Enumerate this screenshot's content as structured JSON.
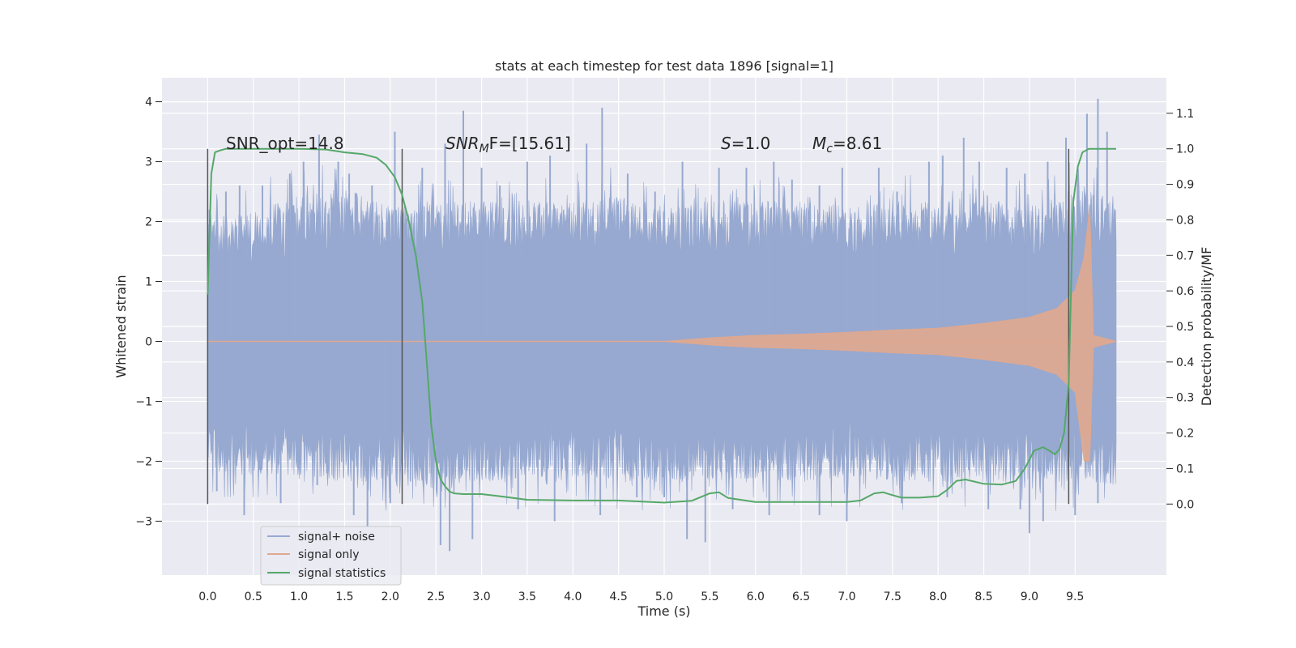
{
  "chart_data": {
    "type": "line",
    "title": "stats at each timestep for test data 1896 [signal=1]",
    "xlabel": "Time (s)",
    "ylabel": "Whitened strain",
    "ylabel_right": "Detection probability/MF",
    "xlim": [
      -0.5,
      10.5
    ],
    "ylim": [
      -3.9,
      4.4
    ],
    "ylim_right": [
      -0.2,
      1.2
    ],
    "x_ticks": [
      "0.0",
      "0.5",
      "1.0",
      "1.5",
      "2.0",
      "2.5",
      "3.0",
      "3.5",
      "4.0",
      "4.5",
      "5.0",
      "5.5",
      "6.0",
      "6.5",
      "7.0",
      "7.5",
      "8.0",
      "8.5",
      "9.0",
      "9.5"
    ],
    "x_tick_values": [
      0.0,
      0.5,
      1.0,
      1.5,
      2.0,
      2.5,
      3.0,
      3.5,
      4.0,
      4.5,
      5.0,
      5.5,
      6.0,
      6.5,
      7.0,
      7.5,
      8.0,
      8.5,
      9.0,
      9.5
    ],
    "y_ticks": [
      "−3",
      "−2",
      "−1",
      "0",
      "1",
      "2",
      "3",
      "4"
    ],
    "y_tick_values": [
      -3,
      -2,
      -1,
      0,
      1,
      2,
      3,
      4
    ],
    "y_right_ticks": [
      "0.0",
      "0.1",
      "0.2",
      "0.3",
      "0.4",
      "0.5",
      "0.6",
      "0.7",
      "0.8",
      "0.9",
      "1.0",
      "1.1"
    ],
    "y_right_tick_values": [
      0.0,
      0.1,
      0.2,
      0.3,
      0.4,
      0.5,
      0.6,
      0.7,
      0.8,
      0.9,
      1.0,
      1.1
    ],
    "grid": true,
    "legend_position": "bottom-left",
    "annotations": {
      "snr_opt": "SNR_opt=14.8",
      "snr_mf": "SNR",
      "snr_mf_sub": "M",
      "snr_mf_rest": "F=[15.61]",
      "s_label": "S",
      "s_value": "=1.0",
      "mc_label": "M",
      "mc_sub": "c",
      "mc_value": "=8.61"
    },
    "vertical_markers": [
      0.0,
      2.13,
      9.43
    ],
    "series": [
      {
        "name": "signal+ noise",
        "color": "#97a9d0",
        "x_range": [
          0.0,
          9.95
        ],
        "upper_envelope": [
          [
            0.0,
            2.2
          ],
          [
            0.5,
            2.2
          ],
          [
            1.0,
            2.5
          ],
          [
            1.5,
            2.6
          ],
          [
            2.0,
            2.3
          ],
          [
            2.5,
            2.4
          ],
          [
            3.0,
            2.4
          ],
          [
            3.5,
            2.4
          ],
          [
            4.0,
            2.4
          ],
          [
            4.5,
            2.5
          ],
          [
            5.0,
            2.3
          ],
          [
            5.5,
            2.4
          ],
          [
            6.0,
            2.4
          ],
          [
            6.5,
            2.4
          ],
          [
            7.0,
            2.3
          ],
          [
            7.5,
            2.4
          ],
          [
            8.0,
            2.4
          ],
          [
            8.5,
            2.4
          ],
          [
            9.0,
            2.3
          ],
          [
            9.5,
            2.6
          ],
          [
            9.95,
            2.5
          ]
        ],
        "lower_envelope": [
          [
            0.0,
            -2.2
          ],
          [
            0.5,
            -2.3
          ],
          [
            1.0,
            -2.3
          ],
          [
            1.5,
            -2.4
          ],
          [
            2.0,
            -2.4
          ],
          [
            2.5,
            -2.6
          ],
          [
            3.0,
            -2.4
          ],
          [
            3.5,
            -2.4
          ],
          [
            4.0,
            -2.3
          ],
          [
            4.5,
            -2.4
          ],
          [
            5.0,
            -2.4
          ],
          [
            5.5,
            -2.4
          ],
          [
            6.0,
            -2.4
          ],
          [
            6.5,
            -2.4
          ],
          [
            7.0,
            -2.3
          ],
          [
            7.5,
            -2.4
          ],
          [
            8.0,
            -2.4
          ],
          [
            8.5,
            -2.4
          ],
          [
            9.0,
            -2.4
          ],
          [
            9.5,
            -2.4
          ],
          [
            9.95,
            -2.5
          ]
        ],
        "peaks": [
          [
            0.02,
            2.2
          ],
          [
            0.2,
            2.5
          ],
          [
            0.35,
            2.6
          ],
          [
            0.6,
            2.6
          ],
          [
            0.9,
            2.8
          ],
          [
            1.05,
            3.0
          ],
          [
            1.22,
            3.45
          ],
          [
            1.43,
            3.0
          ],
          [
            1.55,
            2.8
          ],
          [
            1.8,
            2.6
          ],
          [
            2.05,
            3.5
          ],
          [
            2.35,
            2.9
          ],
          [
            2.6,
            3.3
          ],
          [
            2.8,
            3.85
          ],
          [
            3.0,
            2.9
          ],
          [
            3.2,
            2.6
          ],
          [
            3.5,
            3.0
          ],
          [
            3.75,
            3.1
          ],
          [
            4.15,
            3.3
          ],
          [
            4.32,
            3.9
          ],
          [
            4.6,
            2.8
          ],
          [
            4.9,
            2.5
          ],
          [
            5.2,
            3.0
          ],
          [
            5.6,
            2.9
          ],
          [
            5.9,
            2.9
          ],
          [
            6.2,
            3.0
          ],
          [
            6.4,
            2.7
          ],
          [
            6.7,
            2.6
          ],
          [
            6.95,
            2.9
          ],
          [
            7.35,
            2.9
          ],
          [
            7.55,
            2.5
          ],
          [
            7.9,
            3.0
          ],
          [
            8.05,
            3.1
          ],
          [
            8.28,
            3.4
          ],
          [
            8.45,
            3.0
          ],
          [
            8.75,
            2.9
          ],
          [
            8.95,
            2.8
          ],
          [
            9.2,
            3.0
          ],
          [
            9.4,
            3.4
          ],
          [
            9.63,
            3.8
          ],
          [
            9.75,
            4.05
          ],
          [
            9.85,
            3.5
          ]
        ],
        "troughs": [
          [
            0.1,
            -2.5
          ],
          [
            0.4,
            -2.9
          ],
          [
            0.8,
            -2.7
          ],
          [
            1.2,
            -2.4
          ],
          [
            1.6,
            -2.9
          ],
          [
            1.75,
            -3.1
          ],
          [
            2.0,
            -2.7
          ],
          [
            2.55,
            -3.4
          ],
          [
            2.65,
            -3.5
          ],
          [
            2.9,
            -3.3
          ],
          [
            3.4,
            -2.8
          ],
          [
            3.8,
            -3.0
          ],
          [
            4.3,
            -2.9
          ],
          [
            4.7,
            -2.6
          ],
          [
            5.0,
            -2.6
          ],
          [
            5.25,
            -3.3
          ],
          [
            5.45,
            -3.35
          ],
          [
            5.75,
            -2.8
          ],
          [
            6.15,
            -2.9
          ],
          [
            6.7,
            -2.9
          ],
          [
            7.0,
            -3.0
          ],
          [
            7.6,
            -2.7
          ],
          [
            8.1,
            -2.6
          ],
          [
            8.55,
            -2.8
          ],
          [
            8.9,
            -2.8
          ],
          [
            9.0,
            -3.2
          ],
          [
            9.15,
            -3.0
          ],
          [
            9.5,
            -2.9
          ],
          [
            9.75,
            -2.7
          ]
        ]
      },
      {
        "name": "signal only",
        "color": "#e0a88e",
        "envelope": [
          [
            0.0,
            0.0
          ],
          [
            5.0,
            0.0
          ],
          [
            5.5,
            0.06
          ],
          [
            6.0,
            0.1
          ],
          [
            6.5,
            0.12
          ],
          [
            7.0,
            0.15
          ],
          [
            7.5,
            0.19
          ],
          [
            8.0,
            0.22
          ],
          [
            8.5,
            0.3
          ],
          [
            9.0,
            0.4
          ],
          [
            9.3,
            0.55
          ],
          [
            9.5,
            0.85
          ],
          [
            9.6,
            1.4
          ],
          [
            9.66,
            2.25
          ],
          [
            9.7,
            0.1
          ],
          [
            9.95,
            0.0
          ]
        ],
        "lower_dip": [
          [
            9.55,
            -1.0
          ],
          [
            9.62,
            -1.6
          ],
          [
            9.66,
            -2.0
          ]
        ]
      },
      {
        "name": "signal statistics",
        "color": "#55a868",
        "axis": "right",
        "x": [
          0.0,
          0.04,
          0.08,
          0.13,
          0.2,
          0.3,
          0.5,
          1.0,
          1.3,
          1.5,
          1.7,
          1.85,
          1.95,
          2.05,
          2.13,
          2.2,
          2.28,
          2.35,
          2.4,
          2.45,
          2.5,
          2.55,
          2.6,
          2.65,
          2.7,
          2.8,
          3.0,
          3.2,
          3.5,
          4.0,
          4.5,
          5.0,
          5.3,
          5.5,
          5.6,
          5.7,
          6.0,
          6.5,
          7.0,
          7.15,
          7.3,
          7.4,
          7.5,
          7.6,
          7.8,
          8.0,
          8.1,
          8.2,
          8.3,
          8.5,
          8.7,
          8.85,
          8.95,
          9.05,
          9.15,
          9.22,
          9.28,
          9.33,
          9.38,
          9.43,
          9.48,
          9.53,
          9.58,
          9.65,
          9.95
        ],
        "values": [
          0.59,
          0.93,
          0.99,
          0.995,
          1.0,
          1.0,
          1.0,
          1.0,
          0.998,
          0.99,
          0.985,
          0.975,
          0.955,
          0.92,
          0.87,
          0.8,
          0.7,
          0.57,
          0.4,
          0.22,
          0.12,
          0.07,
          0.05,
          0.035,
          0.03,
          0.028,
          0.028,
          0.022,
          0.012,
          0.01,
          0.01,
          0.004,
          0.009,
          0.03,
          0.033,
          0.017,
          0.006,
          0.006,
          0.006,
          0.01,
          0.03,
          0.033,
          0.025,
          0.018,
          0.018,
          0.022,
          0.04,
          0.065,
          0.069,
          0.057,
          0.055,
          0.065,
          0.1,
          0.15,
          0.16,
          0.15,
          0.14,
          0.155,
          0.2,
          0.34,
          0.85,
          0.95,
          0.99,
          1.0,
          1.0
        ]
      }
    ]
  }
}
